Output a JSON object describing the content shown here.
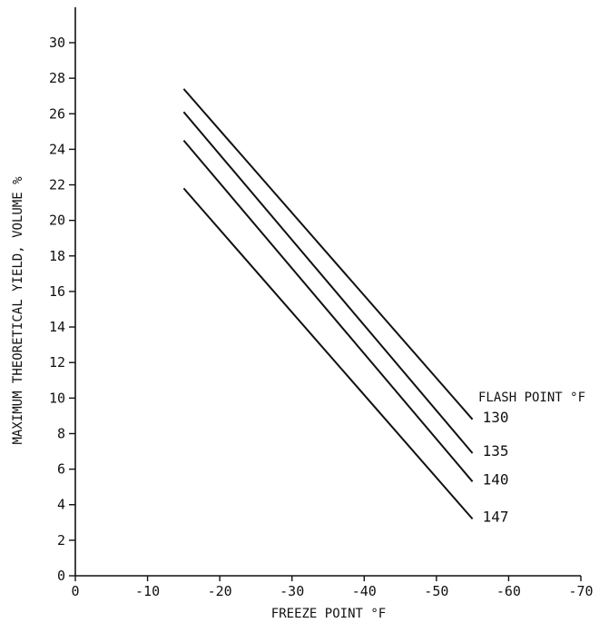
{
  "chart_data": {
    "type": "line",
    "title": "",
    "xlabel": "FREEZE POINT °F",
    "ylabel": "MAXIMUM THEORETICAL YIELD, VOLUME %",
    "legend_title": "FLASH POINT °F",
    "legend_placement": "right",
    "grid": false,
    "xlim": [
      0,
      -70
    ],
    "ylim": [
      0,
      31
    ],
    "x_ticks": [
      0,
      -10,
      -20,
      -30,
      -40,
      -50,
      -60,
      -70
    ],
    "y_ticks": [
      0,
      2,
      4,
      6,
      8,
      10,
      12,
      14,
      16,
      18,
      20,
      22,
      24,
      26,
      28,
      30
    ],
    "series": [
      {
        "name": "130",
        "x": [
          -15,
          -55
        ],
        "y": [
          27.4,
          8.8
        ]
      },
      {
        "name": "135",
        "x": [
          -15,
          -55
        ],
        "y": [
          26.1,
          6.9
        ]
      },
      {
        "name": "140",
        "x": [
          -15,
          -55
        ],
        "y": [
          24.5,
          5.3
        ]
      },
      {
        "name": "147",
        "x": [
          -15,
          -55
        ],
        "y": [
          21.8,
          3.2
        ]
      }
    ],
    "colors": {
      "line": "#111111",
      "axis": "#111111"
    }
  }
}
